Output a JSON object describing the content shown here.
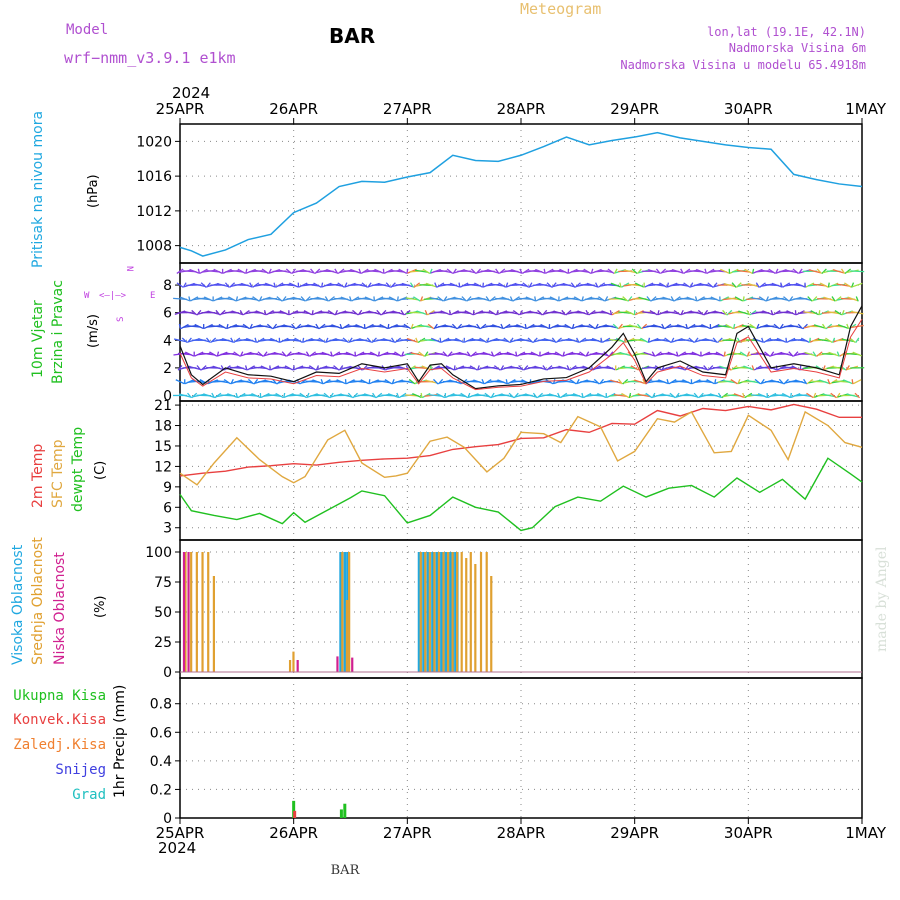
{
  "header": {
    "model_label": "Model",
    "model_name": "wrf−nmm_v3.9.1  e1km",
    "station": "BAR",
    "title": "Meteogram",
    "coords": "lon,lat (19.1E, 42.1N)",
    "elevation": "Nadmorska Visina 6m",
    "model_elevation": "Nadmorska Visina u modelu 65.4918m"
  },
  "footer": {
    "station": "BAR",
    "watermark": "made by Angel"
  },
  "time_axis": {
    "year": "2024",
    "labels": [
      "25APR",
      "26APR",
      "27APR",
      "28APR",
      "29APR",
      "30APR",
      "1MAY"
    ]
  },
  "colors": {
    "pressure": "#1fa0e0",
    "temp2m": "#e84040",
    "sfc": "#e0a840",
    "dew": "#20c020",
    "high_cloud": "#20a8e0",
    "mid_cloud": "#e0a030",
    "low_cloud": "#d02090",
    "precip_total": "#20c020",
    "precip_conv": "#e84040",
    "precip_frozen": "#f08030",
    "snow": "#4040e0",
    "hail": "#20c0c0",
    "wind_dir_text": "#c040e0"
  },
  "panels": {
    "pressure": {
      "ylabel": "Pritisak na nivou mora",
      "unit": "(hPa)"
    },
    "wind": {
      "ylabel1": "10m Vjetar",
      "ylabel2": "Brzina i Pravac",
      "unit": "(m/s)",
      "compass_n": "N",
      "compass_s": "S",
      "compass_w": "W",
      "compass_e": "E",
      "compass_arrows": "<—|—>"
    },
    "temp": {
      "label1": "2m Temp",
      "label2": "SFC Temp",
      "label3": "dewpt Temp",
      "unit": "(C)"
    },
    "cloud": {
      "label1": "Visoka Oblacnost",
      "label2": "Srednja Oblacnost",
      "label3": "Niska Oblacnost",
      "unit": "(%)"
    },
    "precip": {
      "unit": "1hr Precip (mm)",
      "legend": [
        "Ukupna Kisa",
        "Konvek.Kisa",
        "Zaledj.Kisa",
        "Snijeg",
        "Grad"
      ]
    }
  },
  "chart_data": [
    {
      "type": "line",
      "name": "pressure",
      "ylim": [
        1006,
        1022
      ],
      "yticks": [
        1008,
        1012,
        1016,
        1020
      ],
      "x": [
        0,
        0.1,
        0.2,
        0.4,
        0.6,
        0.8,
        1.0,
        1.2,
        1.4,
        1.6,
        1.8,
        2.0,
        2.2,
        2.4,
        2.6,
        2.8,
        3.0,
        3.2,
        3.4,
        3.6,
        3.8,
        4.0,
        4.2,
        4.4,
        4.6,
        4.8,
        5.0,
        5.2,
        5.4,
        5.6,
        5.8,
        6.0
      ],
      "values": [
        1007.8,
        1007.4,
        1006.8,
        1007.5,
        1008.7,
        1009.3,
        1011.8,
        1012.9,
        1014.8,
        1015.4,
        1015.3,
        1015.9,
        1016.4,
        1018.4,
        1017.8,
        1017.7,
        1018.4,
        1019.4,
        1020.5,
        1019.6,
        1020.1,
        1020.5,
        1021.0,
        1020.4,
        1020.0,
        1019.6,
        1019.3,
        1019.1,
        1016.2,
        1015.6,
        1015.1,
        1014.8
      ]
    },
    {
      "type": "line",
      "name": "wind_speed",
      "ylim": [
        -0.4,
        9.6
      ],
      "yticks": [
        0,
        2,
        4,
        6,
        8
      ],
      "x": [
        0,
        0.1,
        0.2,
        0.4,
        0.6,
        0.8,
        1.0,
        1.2,
        1.4,
        1.6,
        1.8,
        2.0,
        2.1,
        2.2,
        2.3,
        2.4,
        2.6,
        2.8,
        3.0,
        3.2,
        3.4,
        3.6,
        3.8,
        3.9,
        4.0,
        4.1,
        4.2,
        4.4,
        4.6,
        4.8,
        4.9,
        5.0,
        5.1,
        5.2,
        5.4,
        5.6,
        5.8,
        5.9,
        6.0
      ],
      "values": [
        3.6,
        1.5,
        0.8,
        2.0,
        1.5,
        1.4,
        1.0,
        1.7,
        1.6,
        2.3,
        2.0,
        2.3,
        1.0,
        2.2,
        2.3,
        1.5,
        0.5,
        0.7,
        0.8,
        1.2,
        1.3,
        2.0,
        3.5,
        4.5,
        3.0,
        1.0,
        2.0,
        2.5,
        1.7,
        1.5,
        4.5,
        5.0,
        3.5,
        2.0,
        2.3,
        2.0,
        1.5,
        5.0,
        6.5
      ]
    },
    {
      "type": "line",
      "name": "temperature",
      "ylim": [
        1.2,
        21.6
      ],
      "yticks": [
        3,
        6,
        9,
        12,
        15,
        18,
        21
      ],
      "series": [
        {
          "name": "2m Temp",
          "x": [
            0,
            0.2,
            0.4,
            0.6,
            0.8,
            1.0,
            1.2,
            1.4,
            1.6,
            1.8,
            2.0,
            2.2,
            2.4,
            2.6,
            2.8,
            3.0,
            3.2,
            3.4,
            3.6,
            3.8,
            4.0,
            4.2,
            4.4,
            4.6,
            4.8,
            5.0,
            5.2,
            5.4,
            5.6,
            5.8,
            6.0
          ],
          "values": [
            10.6,
            11.0,
            11.3,
            11.9,
            12.1,
            12.4,
            12.2,
            12.6,
            12.9,
            13.1,
            13.2,
            13.6,
            14.5,
            14.9,
            15.2,
            16.1,
            16.2,
            17.4,
            17.0,
            18.3,
            18.2,
            20.2,
            19.4,
            20.5,
            20.2,
            20.8,
            20.3,
            21.1,
            20.4,
            19.2,
            19.2
          ]
        },
        {
          "name": "SFC Temp",
          "x": [
            0,
            0.15,
            0.3,
            0.5,
            0.7,
            0.9,
            1.0,
            1.1,
            1.3,
            1.45,
            1.6,
            1.8,
            1.9,
            2.0,
            2.2,
            2.35,
            2.5,
            2.7,
            2.85,
            3.0,
            3.2,
            3.35,
            3.5,
            3.7,
            3.85,
            4.0,
            4.2,
            4.35,
            4.5,
            4.7,
            4.85,
            5.0,
            5.2,
            5.35,
            5.5,
            5.7,
            5.85,
            6.0
          ],
          "values": [
            11.0,
            9.3,
            12.5,
            16.2,
            13.0,
            10.5,
            9.6,
            10.5,
            15.9,
            17.3,
            12.5,
            10.4,
            10.6,
            11.0,
            15.7,
            16.3,
            14.8,
            11.2,
            13.2,
            17.0,
            16.8,
            15.5,
            19.3,
            17.8,
            12.8,
            14.2,
            19.0,
            18.5,
            20.0,
            14.0,
            14.2,
            19.5,
            17.3,
            13.0,
            20.0,
            18.0,
            15.5,
            14.8
          ]
        },
        {
          "name": "dewpt Temp",
          "x": [
            0,
            0.1,
            0.3,
            0.5,
            0.7,
            0.9,
            1.0,
            1.1,
            1.3,
            1.5,
            1.6,
            1.8,
            2.0,
            2.2,
            2.4,
            2.6,
            2.8,
            3.0,
            3.1,
            3.3,
            3.5,
            3.7,
            3.9,
            4.1,
            4.3,
            4.5,
            4.7,
            4.9,
            5.1,
            5.3,
            5.5,
            5.7,
            5.9,
            6.0
          ],
          "values": [
            7.9,
            5.5,
            4.8,
            4.2,
            5.1,
            3.6,
            5.2,
            3.8,
            5.6,
            7.4,
            8.4,
            7.7,
            3.7,
            4.8,
            7.5,
            6.0,
            5.3,
            2.6,
            3.0,
            6.1,
            7.5,
            6.9,
            9.1,
            7.5,
            8.8,
            9.2,
            7.5,
            10.3,
            8.2,
            10.1,
            7.2,
            13.2,
            10.9,
            9.7
          ]
        }
      ]
    },
    {
      "type": "bar",
      "name": "cloud_cover",
      "ylim": [
        -5,
        110
      ],
      "yticks": [
        0,
        25,
        50,
        75,
        100
      ],
      "series": [
        {
          "name": "Visoka Oblacnost",
          "x": [
            1.42,
            1.44,
            1.46,
            1.48,
            2.11,
            2.13,
            2.15,
            2.17,
            2.19,
            2.21,
            2.23,
            2.25,
            2.27,
            2.29,
            2.31,
            2.33,
            2.35,
            2.37,
            2.39,
            2.41,
            2.43,
            2.45
          ],
          "values": [
            100,
            100,
            100,
            100,
            100,
            100,
            100,
            100,
            100,
            100,
            100,
            100,
            100,
            100,
            100,
            100,
            100,
            100,
            100,
            100,
            100,
            100
          ]
        },
        {
          "name": "Srednja Oblacnost",
          "x": [
            0.05,
            0.1,
            0.15,
            0.2,
            0.25,
            0.3,
            0.97,
            1.0,
            1.43,
            1.47,
            1.49,
            2.12,
            2.16,
            2.2,
            2.24,
            2.28,
            2.32,
            2.36,
            2.4,
            2.44,
            2.48,
            2.52,
            2.56,
            2.6,
            2.65,
            2.7,
            2.74
          ],
          "values": [
            100,
            100,
            100,
            100,
            100,
            80,
            10,
            17,
            100,
            60,
            100,
            100,
            100,
            100,
            100,
            100,
            100,
            100,
            100,
            100,
            100,
            95,
            100,
            90,
            100,
            100,
            80
          ]
        },
        {
          "name": "Niska Oblacnost",
          "x": [
            0.03,
            0.07,
            1.03,
            1.38,
            1.51
          ],
          "values": [
            100,
            100,
            10,
            13,
            12
          ]
        }
      ]
    },
    {
      "type": "bar",
      "name": "precip_1hr",
      "ylim": [
        0,
        0.98
      ],
      "yticks": [
        0,
        0.2,
        0.4,
        0.6,
        0.8
      ],
      "series": [
        {
          "name": "Ukupna Kisa",
          "x": [
            1.0,
            1.42,
            1.45
          ],
          "values": [
            0.12,
            0.06,
            0.1
          ]
        },
        {
          "name": "Konvek.Kisa",
          "x": [
            1.0
          ],
          "values": [
            0.05
          ]
        }
      ]
    }
  ]
}
